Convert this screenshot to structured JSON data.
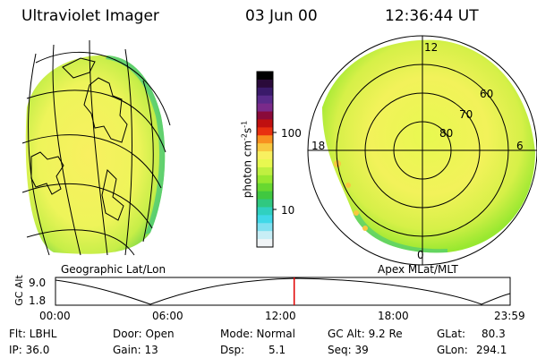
{
  "header": {
    "title": "Ultraviolet Imager",
    "date": "03 Jun 00",
    "time": "12:36:44 UT"
  },
  "colorbar": {
    "label": "photon cm-2s-1",
    "unit_base": "photon cm",
    "exp1": "-2",
    "mid": "s",
    "exp2": "-1",
    "ticks": [
      "100",
      "10"
    ],
    "colors": [
      "#000000",
      "#2a0a3a",
      "#3a1a6a",
      "#5a2a8a",
      "#7a2a8a",
      "#8a0a3a",
      "#c01010",
      "#e83010",
      "#f89020",
      "#f8c840",
      "#f8f060",
      "#e8f850",
      "#c0f040",
      "#98e830",
      "#68d830",
      "#40c840",
      "#30c880",
      "#30d0c0",
      "#40d8e8",
      "#80e0f0",
      "#c8eef6",
      "#f0f4f6"
    ]
  },
  "geo_map": {
    "label": "Geographic Lat/Lon"
  },
  "apex_map": {
    "label": "Apex MLat/MLT",
    "mlt_labels": [
      "12",
      "18",
      "6",
      "0"
    ],
    "lat_labels": [
      "60",
      "70",
      "80"
    ]
  },
  "timeline": {
    "ylabel": "GC Alt",
    "y_ticks": [
      "9.0",
      "1.8"
    ],
    "x_ticks": [
      "00:00",
      "06:00",
      "12:00",
      "18:00",
      "23:59"
    ],
    "current_time_fraction": 0.525
  },
  "info": {
    "flt": "Flt: LBHL",
    "ip": "IP: 36.0",
    "door": "Door: Open",
    "gain": "Gain: 13",
    "mode": "Mode: Normal",
    "dsp_label": "Dsp:",
    "dsp_value": "5.1",
    "gc_alt": "GC Alt: 9.2 Re",
    "seq": "Seq: 39",
    "glat_label": "GLat:",
    "glat_value": "80.3",
    "glon_label": "GLon:",
    "glon_value": "294.1"
  }
}
